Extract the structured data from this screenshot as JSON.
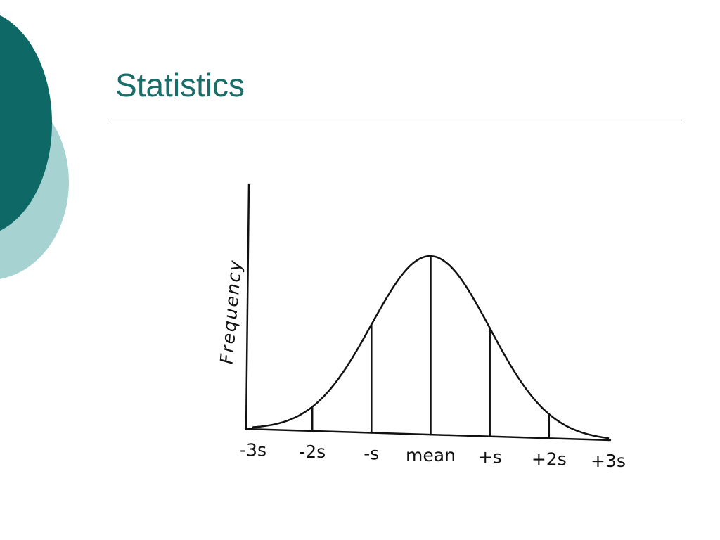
{
  "slide": {
    "title": "Statistics",
    "colors": {
      "title": "#1a6e6a",
      "decoration_dark": "#0e6866",
      "decoration_light": "#a6d2d2"
    }
  },
  "chart_data": {
    "type": "line",
    "title": "",
    "xlabel": "",
    "ylabel": "Frequency",
    "description_curve": "normal distribution",
    "x": [
      -3,
      -2,
      -1,
      0,
      1,
      2,
      3
    ],
    "tick_labels": [
      "-3s",
      "-2s",
      "-s",
      "mean",
      "+s",
      "+2s",
      "+3s"
    ],
    "xlim": [
      -3,
      3
    ],
    "grid": false,
    "legend": "none"
  }
}
